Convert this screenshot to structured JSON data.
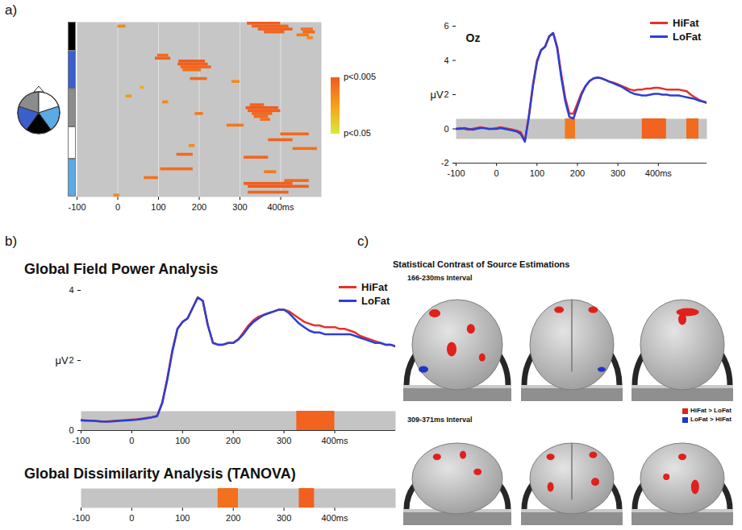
{
  "chart_data": [
    {
      "type": "heatmap",
      "panel": "a)",
      "xlim": [
        -100,
        500
      ],
      "xticks": [
        -100,
        0,
        100,
        200,
        300,
        {
          "value": 400,
          "label": "400ms"
        }
      ],
      "grid": true,
      "groups": [
        {
          "color": "#000000",
          "rows": 10
        },
        {
          "color": "#3a5fcd",
          "rows": 13
        },
        {
          "color": "#8c8c8c",
          "rows": 13
        },
        {
          "color": "#ffffff",
          "rows": 11
        },
        {
          "color": "#5aaae6",
          "rows": 13
        }
      ],
      "cells": [
        {
          "row": 0,
          "start": 318,
          "end": 400,
          "p": 0.006
        },
        {
          "row": 1,
          "start": 0,
          "end": 20,
          "p": 0.02
        },
        {
          "row": 1,
          "start": 330,
          "end": 420,
          "p": 0.008
        },
        {
          "row": 2,
          "start": 345,
          "end": 430,
          "p": 0.007
        },
        {
          "row": 2,
          "start": 450,
          "end": 480,
          "p": 0.012
        },
        {
          "row": 3,
          "start": 360,
          "end": 410,
          "p": 0.009
        },
        {
          "row": 3,
          "start": 455,
          "end": 485,
          "p": 0.01
        },
        {
          "row": 4,
          "start": 440,
          "end": 470,
          "p": 0.015
        },
        {
          "row": 5,
          "start": 465,
          "end": 480,
          "p": 0.02
        },
        {
          "row": 11,
          "start": 98,
          "end": 125,
          "p": 0.01
        },
        {
          "row": 12,
          "start": 92,
          "end": 130,
          "p": 0.008
        },
        {
          "row": 13,
          "start": 150,
          "end": 215,
          "p": 0.006
        },
        {
          "row": 14,
          "start": 148,
          "end": 222,
          "p": 0.007
        },
        {
          "row": 15,
          "start": 155,
          "end": 230,
          "p": 0.009
        },
        {
          "row": 16,
          "start": 160,
          "end": 205,
          "p": 0.012
        },
        {
          "row": 19,
          "start": 178,
          "end": 220,
          "p": 0.01
        },
        {
          "row": 20,
          "start": 280,
          "end": 300,
          "p": 0.02
        },
        {
          "row": 22,
          "start": 55,
          "end": 65,
          "p": 0.03
        },
        {
          "row": 25,
          "start": 20,
          "end": 35,
          "p": 0.025
        },
        {
          "row": 27,
          "start": 110,
          "end": 125,
          "p": 0.02
        },
        {
          "row": 28,
          "start": 325,
          "end": 360,
          "p": 0.008
        },
        {
          "row": 29,
          "start": 315,
          "end": 395,
          "p": 0.006
        },
        {
          "row": 30,
          "start": 320,
          "end": 400,
          "p": 0.007
        },
        {
          "row": 31,
          "start": 190,
          "end": 210,
          "p": 0.015
        },
        {
          "row": 31,
          "start": 330,
          "end": 380,
          "p": 0.009
        },
        {
          "row": 32,
          "start": 335,
          "end": 370,
          "p": 0.01
        },
        {
          "row": 33,
          "start": 350,
          "end": 375,
          "p": 0.012
        },
        {
          "row": 35,
          "start": 268,
          "end": 310,
          "p": 0.015
        },
        {
          "row": 38,
          "start": 400,
          "end": 470,
          "p": 0.01
        },
        {
          "row": 40,
          "start": 370,
          "end": 430,
          "p": 0.008
        },
        {
          "row": 42,
          "start": 175,
          "end": 190,
          "p": 0.02
        },
        {
          "row": 43,
          "start": 430,
          "end": 490,
          "p": 0.012
        },
        {
          "row": 45,
          "start": 145,
          "end": 185,
          "p": 0.01
        },
        {
          "row": 46,
          "start": 310,
          "end": 370,
          "p": 0.009
        },
        {
          "row": 50,
          "start": 105,
          "end": 185,
          "p": 0.011
        },
        {
          "row": 51,
          "start": 360,
          "end": 390,
          "p": 0.015
        },
        {
          "row": 53,
          "start": 65,
          "end": 100,
          "p": 0.013
        },
        {
          "row": 54,
          "start": 410,
          "end": 470,
          "p": 0.01
        },
        {
          "row": 55,
          "start": 310,
          "end": 430,
          "p": 0.007
        },
        {
          "row": 56,
          "start": 320,
          "end": 470,
          "p": 0.006
        },
        {
          "row": 58,
          "start": 320,
          "end": 420,
          "p": 0.008
        },
        {
          "row": 59,
          "start": -10,
          "end": 5,
          "p": 0.02
        }
      ],
      "colorbar": {
        "range": [
          0.005,
          0.05
        ],
        "colors": [
          "#f05a1e",
          "#f7a01c",
          "#d8ea3a"
        ],
        "ticks": [
          {
            "value": 0.005,
            "label": "p<0.005"
          },
          {
            "value": 0.05,
            "label": "p<0.05"
          }
        ]
      }
    },
    {
      "type": "line",
      "title": "Oz",
      "ylabel": "μV",
      "legend": "top-right",
      "xlim": [
        -100,
        520
      ],
      "xticks": [
        -100,
        0,
        100,
        200,
        300,
        {
          "value": 400,
          "label": "400ms"
        }
      ],
      "ylim": [
        -2,
        6
      ],
      "yticks": [
        -2,
        0,
        2,
        4,
        6
      ],
      "x": [
        -100,
        -90,
        -80,
        -70,
        -60,
        -50,
        -40,
        -30,
        -20,
        -10,
        0,
        10,
        20,
        30,
        40,
        50,
        60,
        70,
        80,
        90,
        100,
        110,
        120,
        130,
        140,
        150,
        160,
        170,
        180,
        190,
        200,
        210,
        220,
        230,
        240,
        250,
        260,
        270,
        280,
        290,
        300,
        310,
        320,
        330,
        340,
        350,
        360,
        370,
        380,
        390,
        400,
        410,
        420,
        430,
        440,
        450,
        460,
        470,
        480,
        490,
        500,
        510,
        520
      ],
      "series": [
        {
          "name": "HiFat",
          "color": "#e8312a",
          "values": [
            0,
            0.05,
            0,
            -0.05,
            0,
            0.05,
            0.1,
            0.05,
            0,
            0,
            0.05,
            0.1,
            0.05,
            0,
            -0.05,
            -0.1,
            -0.2,
            -0.7,
            0.8,
            2.6,
            4.0,
            4.6,
            4.8,
            5.4,
            5.6,
            4.8,
            3.2,
            1.8,
            0.9,
            0.9,
            1.5,
            2.1,
            2.5,
            2.8,
            2.95,
            3.0,
            2.95,
            2.85,
            2.75,
            2.7,
            2.6,
            2.5,
            2.4,
            2.3,
            2.25,
            2.3,
            2.3,
            2.35,
            2.35,
            2.4,
            2.4,
            2.35,
            2.3,
            2.3,
            2.3,
            2.3,
            2.25,
            2.2,
            2.0,
            1.85,
            1.7,
            1.6,
            1.5
          ]
        },
        {
          "name": "LoFat",
          "color": "#2b3fd6",
          "values": [
            0,
            0,
            0.05,
            0,
            -0.05,
            0,
            0.05,
            0.05,
            0,
            0,
            0,
            0.05,
            0,
            -0.05,
            -0.1,
            -0.15,
            -0.3,
            -0.75,
            0.7,
            2.5,
            3.9,
            4.6,
            4.8,
            5.4,
            5.6,
            4.7,
            3.0,
            1.6,
            0.7,
            0.6,
            1.3,
            2.0,
            2.5,
            2.8,
            2.95,
            3.0,
            2.95,
            2.85,
            2.75,
            2.65,
            2.55,
            2.45,
            2.3,
            2.15,
            2.05,
            2.0,
            1.95,
            1.95,
            2.0,
            2.05,
            2.05,
            2.0,
            2.0,
            1.95,
            1.95,
            1.95,
            1.9,
            1.85,
            1.8,
            1.75,
            1.65,
            1.6,
            1.55
          ]
        }
      ],
      "significance": [
        {
          "start": 170,
          "end": 195,
          "p": 0.015
        },
        {
          "start": 360,
          "end": 420,
          "p": 0.008
        },
        {
          "start": 470,
          "end": 500,
          "p": 0.01
        }
      ]
    },
    {
      "type": "line",
      "panel": "b)",
      "title": "Global Field Power Analysis",
      "ylabel": "μV",
      "legend": "top-right",
      "xlim": [
        -100,
        520
      ],
      "xticks": [
        -100,
        0,
        100,
        200,
        300,
        {
          "value": 400,
          "label": "400ms"
        }
      ],
      "ylim": [
        0,
        4
      ],
      "yticks": [
        0,
        2,
        4
      ],
      "x": [
        -100,
        -90,
        -80,
        -70,
        -60,
        -50,
        -40,
        -30,
        -20,
        -10,
        0,
        10,
        20,
        30,
        40,
        50,
        60,
        70,
        80,
        90,
        100,
        110,
        120,
        130,
        140,
        150,
        160,
        170,
        180,
        190,
        200,
        210,
        220,
        230,
        240,
        250,
        260,
        270,
        280,
        290,
        300,
        310,
        320,
        330,
        340,
        350,
        360,
        370,
        380,
        390,
        400,
        410,
        420,
        430,
        440,
        450,
        460,
        470,
        480,
        490,
        500,
        510,
        520
      ],
      "series": [
        {
          "name": "HiFat",
          "color": "#e8312a",
          "values": [
            0.3,
            0.29,
            0.28,
            0.27,
            0.26,
            0.26,
            0.27,
            0.28,
            0.29,
            0.3,
            0.31,
            0.32,
            0.34,
            0.36,
            0.38,
            0.42,
            0.8,
            1.5,
            2.3,
            2.9,
            3.1,
            3.2,
            3.5,
            3.8,
            3.7,
            3.0,
            2.5,
            2.45,
            2.45,
            2.5,
            2.5,
            2.6,
            2.8,
            3.0,
            3.15,
            3.25,
            3.3,
            3.35,
            3.4,
            3.45,
            3.45,
            3.4,
            3.3,
            3.2,
            3.1,
            3.05,
            3.0,
            3.0,
            2.95,
            2.95,
            2.95,
            2.9,
            2.9,
            2.85,
            2.8,
            2.7,
            2.65,
            2.6,
            2.55,
            2.5,
            2.45,
            2.45,
            2.4
          ]
        },
        {
          "name": "LoFat",
          "color": "#2b3fd6",
          "values": [
            0.29,
            0.28,
            0.28,
            0.27,
            0.26,
            0.25,
            0.26,
            0.27,
            0.28,
            0.29,
            0.3,
            0.31,
            0.33,
            0.35,
            0.38,
            0.41,
            0.78,
            1.45,
            2.25,
            2.9,
            3.1,
            3.2,
            3.5,
            3.8,
            3.7,
            3.0,
            2.5,
            2.45,
            2.45,
            2.5,
            2.5,
            2.6,
            2.75,
            2.95,
            3.1,
            3.2,
            3.3,
            3.35,
            3.4,
            3.45,
            3.45,
            3.35,
            3.2,
            3.05,
            2.95,
            2.85,
            2.8,
            2.8,
            2.75,
            2.75,
            2.75,
            2.75,
            2.75,
            2.75,
            2.7,
            2.65,
            2.6,
            2.55,
            2.5,
            2.5,
            2.45,
            2.45,
            2.4
          ]
        }
      ],
      "significance": [
        {
          "start": 325,
          "end": 400,
          "p": 0.008
        }
      ]
    },
    {
      "type": "significance_bar",
      "title": "Global Dissimilarity Analysis (TANOVA)",
      "tick_labels": "x",
      "xlim": [
        -100,
        520
      ],
      "xticks": [
        -100,
        0,
        100,
        200,
        300,
        {
          "value": 400,
          "label": "400ms"
        }
      ],
      "significance": [
        {
          "start": 170,
          "end": 210,
          "p": 0.012
        },
        {
          "start": 330,
          "end": 360,
          "p": 0.007
        }
      ]
    }
  ],
  "source_estimations": {
    "panel": "c)",
    "title": "Statistical Contrast of Source Estimations",
    "intervals": [
      "166-230ms Interval",
      "309-371ms Interval"
    ],
    "legend": [
      {
        "name": "HiFat > LoFat",
        "color": "#e0201b"
      },
      {
        "name": "LoFat > HiFat",
        "color": "#2233cc"
      }
    ]
  }
}
